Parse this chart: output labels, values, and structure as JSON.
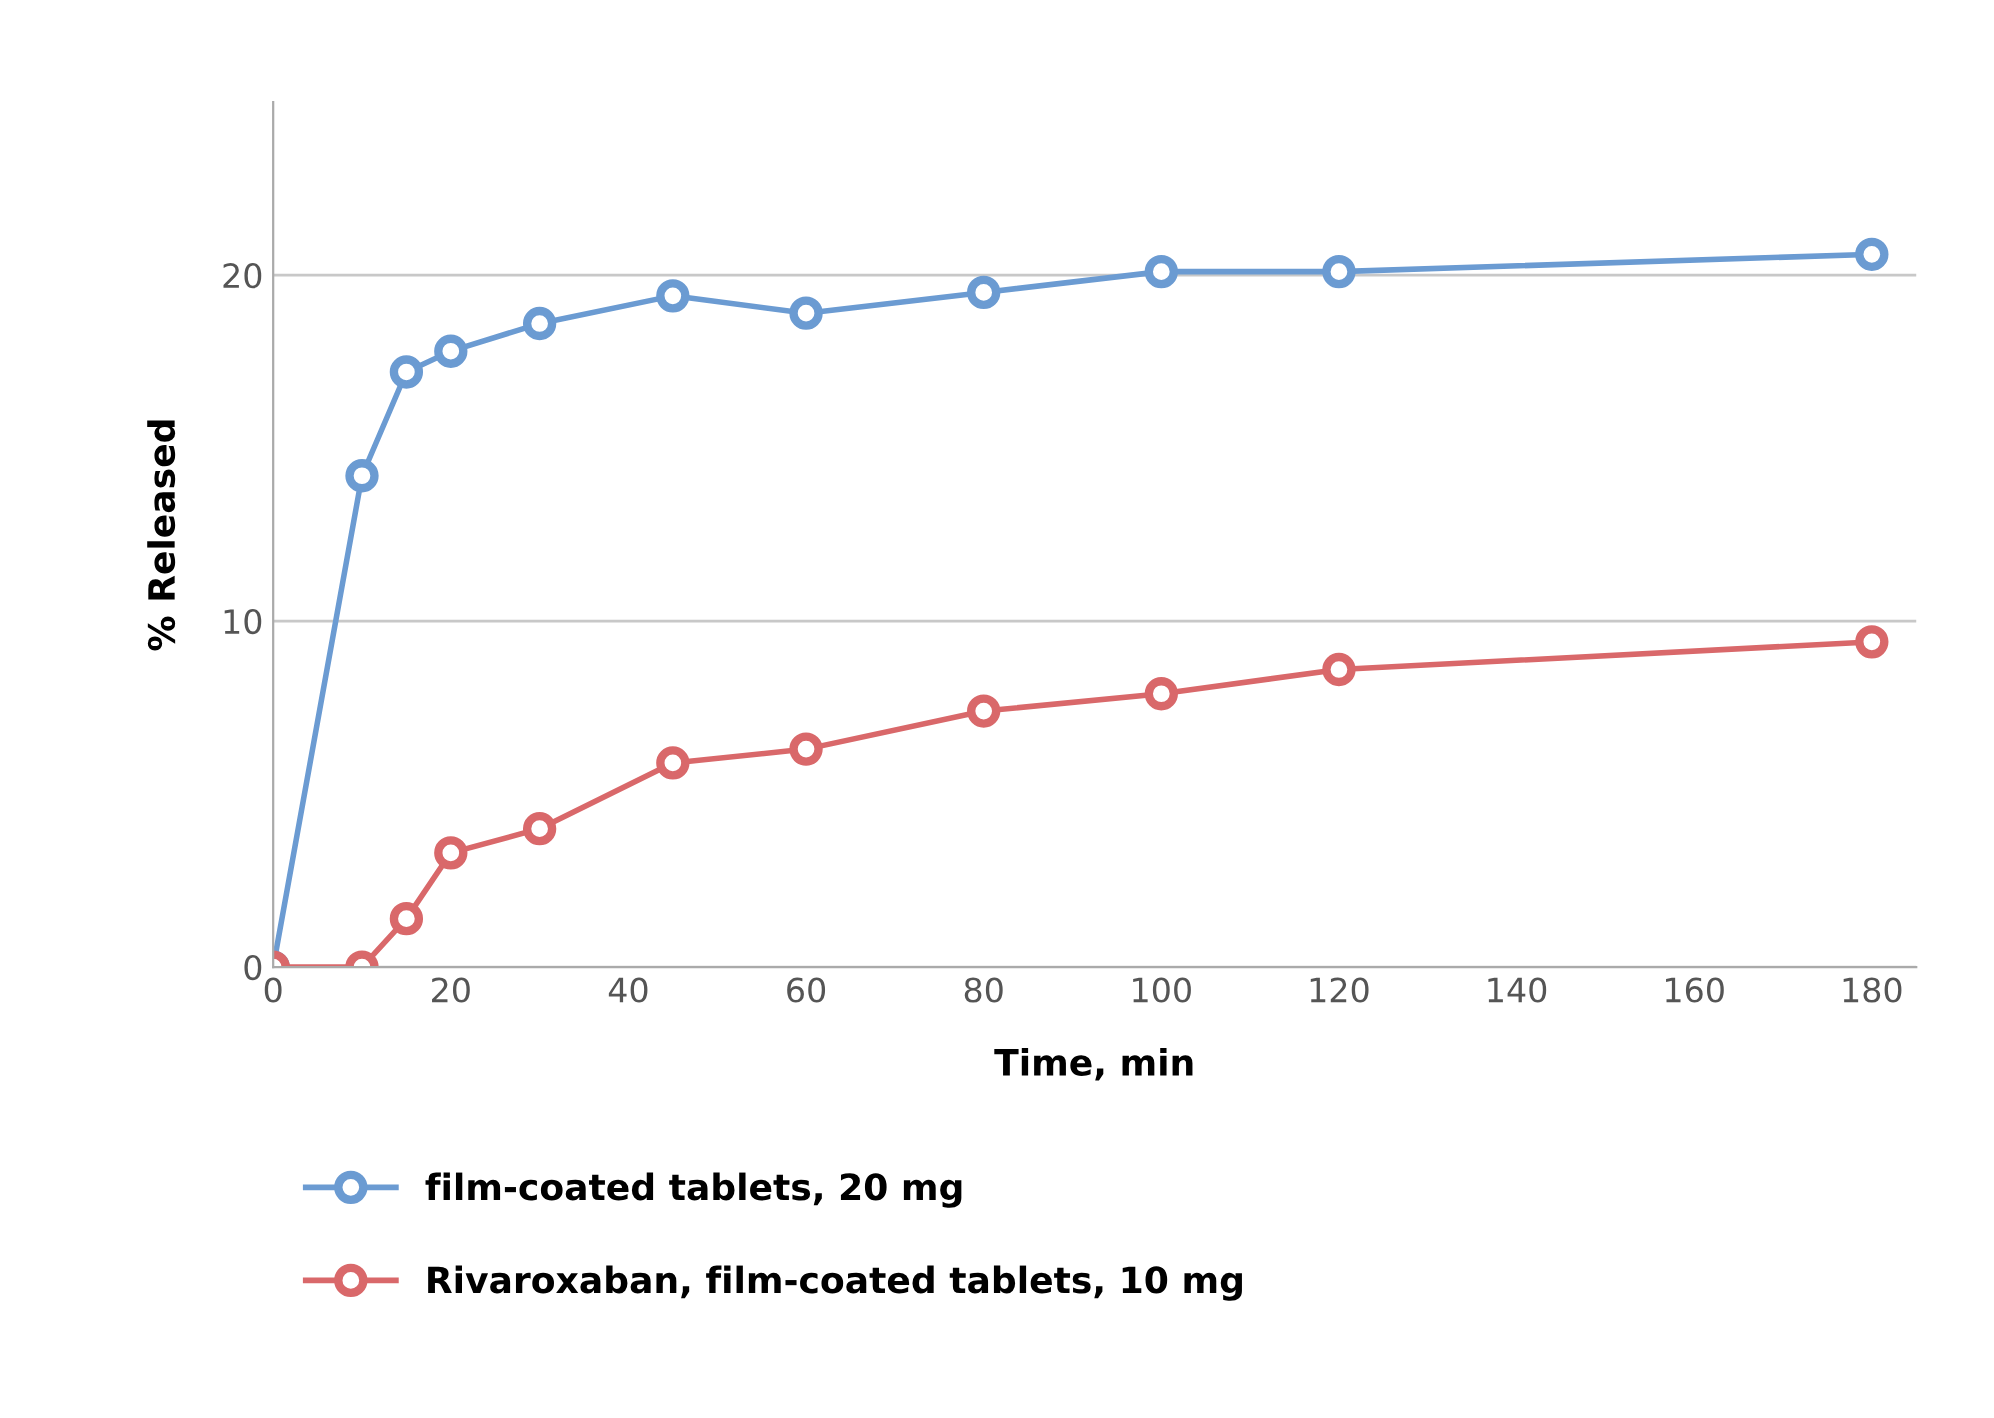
{
  "chart_data": {
    "type": "line",
    "xlabel": "Time, min",
    "ylabel": "% Released",
    "x": [
      0,
      10,
      15,
      20,
      30,
      45,
      60,
      80,
      100,
      120,
      180
    ],
    "series": [
      {
        "name": "film-coated tablets, 20 mg",
        "color": "#6b9bd2",
        "values": [
          0,
          14.2,
          17.2,
          17.8,
          18.6,
          19.4,
          18.9,
          19.5,
          20.1,
          20.1,
          20.6
        ]
      },
      {
        "name": "Rivaroxaban, film-coated tablets, 10 mg",
        "color": "#d9686a",
        "values": [
          0,
          0.0,
          1.4,
          3.3,
          4.0,
          5.9,
          6.3,
          7.4,
          7.9,
          8.6,
          9.4
        ]
      }
    ],
    "xlim": [
      0,
      185
    ],
    "xticks": [
      0,
      20,
      40,
      60,
      80,
      100,
      120,
      140,
      160,
      180
    ],
    "ylim": [
      0,
      25
    ],
    "yticks": [
      0,
      10,
      20
    ],
    "grid": "y",
    "legend": "bottom",
    "marker": "circle",
    "line_style": "solid"
  }
}
